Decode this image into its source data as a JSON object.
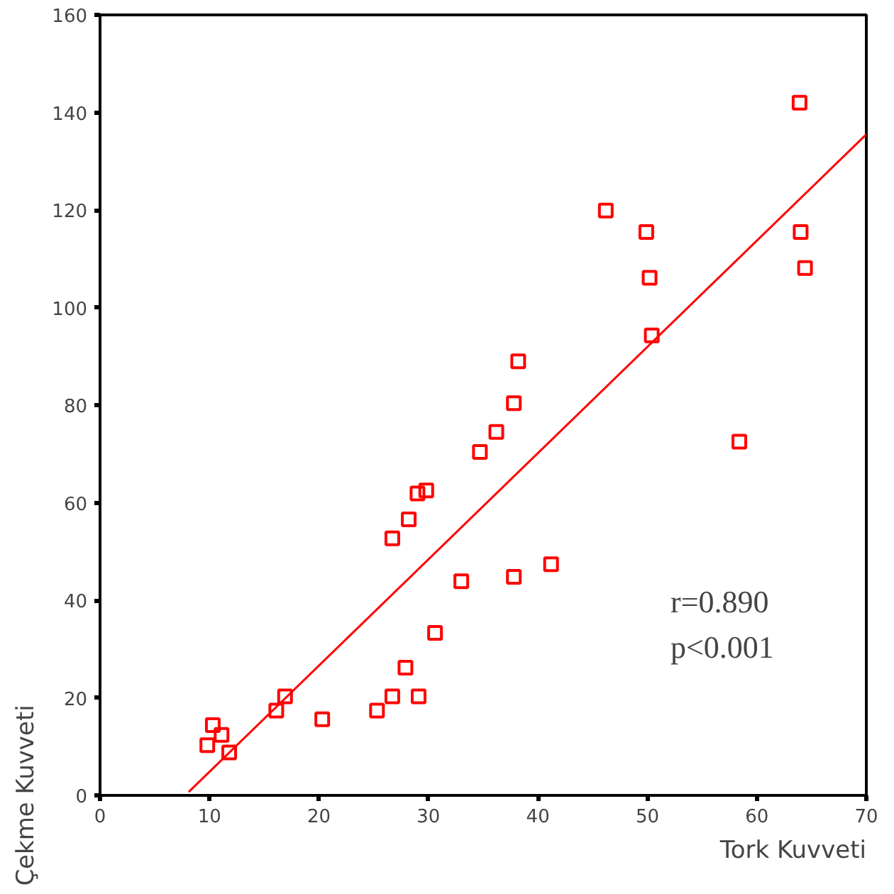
{
  "chart_data": {
    "type": "scatter",
    "xlabel": "Tork Kuvveti",
    "ylabel": "Çekme Kuvveti",
    "xlim": [
      0,
      70
    ],
    "ylim": [
      0,
      160
    ],
    "xticks": [
      0,
      10,
      20,
      30,
      40,
      50,
      60,
      70
    ],
    "yticks": [
      0,
      20,
      40,
      60,
      80,
      100,
      120,
      140,
      160
    ],
    "grid": false,
    "marker": "square",
    "annotations": [
      "r=0.890",
      "p<0.001"
    ],
    "series": [
      {
        "color": "#ff0000",
        "x": [
          63.9,
          46.2,
          49.9,
          64.0,
          50.2,
          64.4,
          50.4,
          38.2,
          37.8,
          36.2,
          34.7,
          58.4,
          29.8,
          29.0,
          28.2,
          26.7,
          41.2,
          37.8,
          33.0,
          30.6,
          27.9,
          26.7,
          29.1,
          16.9,
          16.1,
          25.3,
          20.3,
          10.3,
          11.1,
          9.8,
          11.8
        ],
        "values": [
          142.0,
          119.9,
          115.5,
          115.5,
          106.1,
          108.1,
          94.3,
          89.0,
          80.4,
          74.5,
          70.4,
          72.5,
          62.5,
          61.9,
          56.6,
          52.7,
          47.4,
          44.8,
          43.9,
          33.3,
          26.2,
          20.3,
          20.3,
          20.3,
          17.4,
          17.4,
          15.6,
          14.4,
          12.4,
          10.3,
          8.8
        ]
      },
      {
        "type": "line",
        "marker": "none",
        "color": "#ff0000",
        "x": [
          8.1,
          70
        ],
        "values": [
          0.7,
          135.5
        ]
      }
    ]
  }
}
